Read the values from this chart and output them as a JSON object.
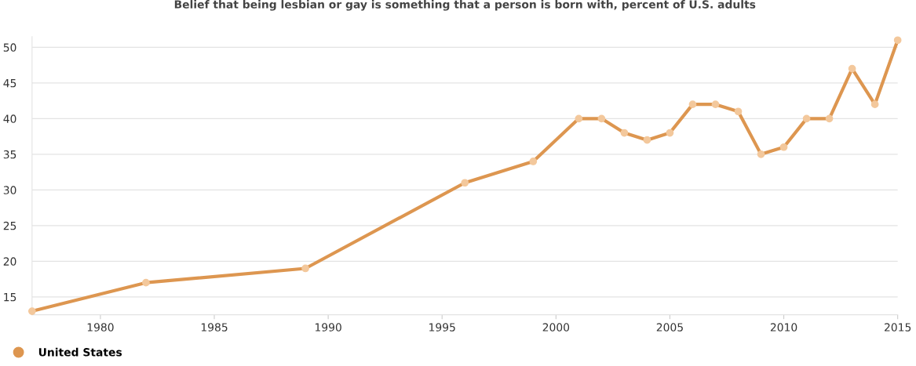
{
  "chart_data": {
    "type": "line",
    "title": "Belief that being lesbian or gay is something that a person is born with, percent of U.S. adults",
    "x": [
      1977,
      1982,
      1989,
      1996,
      1999,
      2001,
      2002,
      2003,
      2004,
      2005,
      2006,
      2007,
      2008,
      2009,
      2010,
      2011,
      2012,
      2013,
      2014,
      2015
    ],
    "series": [
      {
        "name": "United States",
        "color": "#dd9650",
        "values": [
          13,
          17,
          19,
          31,
          34,
          40,
          40,
          38,
          37,
          38,
          42,
          42,
          41,
          35,
          36,
          40,
          40,
          47,
          42,
          51
        ]
      }
    ],
    "xlim": [
      1977,
      2015
    ],
    "xticks": [
      1980,
      1985,
      1990,
      1995,
      2000,
      2005,
      2010,
      2015
    ],
    "ylim": [
      12.5,
      51.5
    ],
    "yticks": [
      15,
      20,
      25,
      30,
      35,
      40,
      45,
      50
    ],
    "grid": "y",
    "legend": "bottom left",
    "marker": "circle",
    "line_style": "solid"
  }
}
